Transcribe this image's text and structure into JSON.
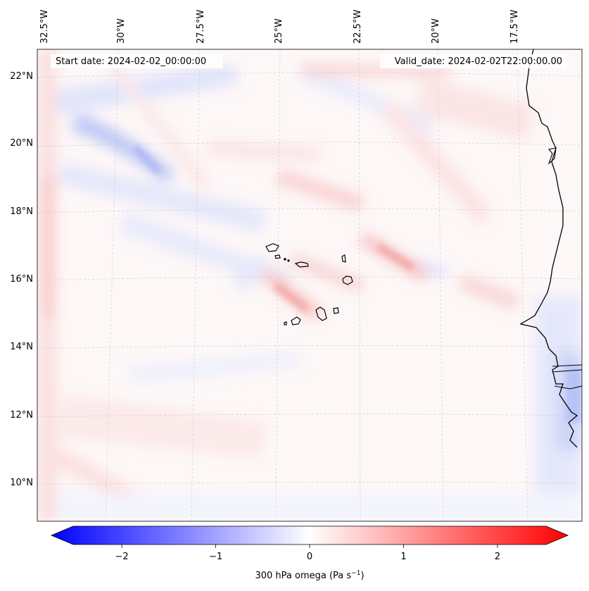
{
  "map": {
    "start_label": "Start date: 2024-02-02_00:00:00",
    "valid_label": "Valid_date: 2024-02-02T22:00:00.00",
    "lon_labels": [
      "32.5°W",
      "30°W",
      "27.5°W",
      "25°W",
      "22.5°W",
      "20°W",
      "17.5°W"
    ],
    "lat_labels": [
      "22°N",
      "20°N",
      "18°N",
      "16°N",
      "14°N",
      "12°N",
      "10°N"
    ],
    "islands": "Cape Verde islands",
    "coastline": "West African coast"
  },
  "colorbar": {
    "label_main": "300 hPa omega (Pa s",
    "label_exp": "−1",
    "label_close": ")",
    "ticks": [
      "−2",
      "−1",
      "0",
      "1",
      "2"
    ],
    "range": [
      -2.75,
      2.75
    ],
    "cmap": "bwr",
    "colors": {
      "neg": "#0000ff",
      "mid": "#ffffff",
      "pos": "#ff0000"
    }
  }
}
